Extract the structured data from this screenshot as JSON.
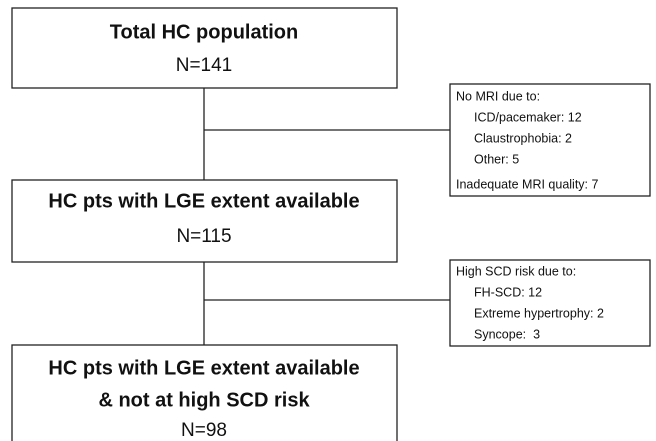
{
  "nodes": [
    {
      "lines": [
        "Total HC population"
      ],
      "n": "N=141"
    },
    {
      "lines": [
        "HC pts with LGE extent available"
      ],
      "n": "N=115"
    },
    {
      "lines": [
        "HC pts with LGE extent available",
        "& not at high SCD risk"
      ],
      "n": "N=98"
    }
  ],
  "exclusions": [
    {
      "heading": "No MRI due to:",
      "items": [
        "ICD/pacemaker: 12",
        "Claustrophobia: 2",
        "Other: 5"
      ],
      "footer": "Inadequate MRI quality: 7"
    },
    {
      "heading": "High SCD risk due to:",
      "items": [
        "FH-SCD: 12",
        "Extreme hypertrophy: 2",
        "Syncope:  3"
      ]
    }
  ]
}
